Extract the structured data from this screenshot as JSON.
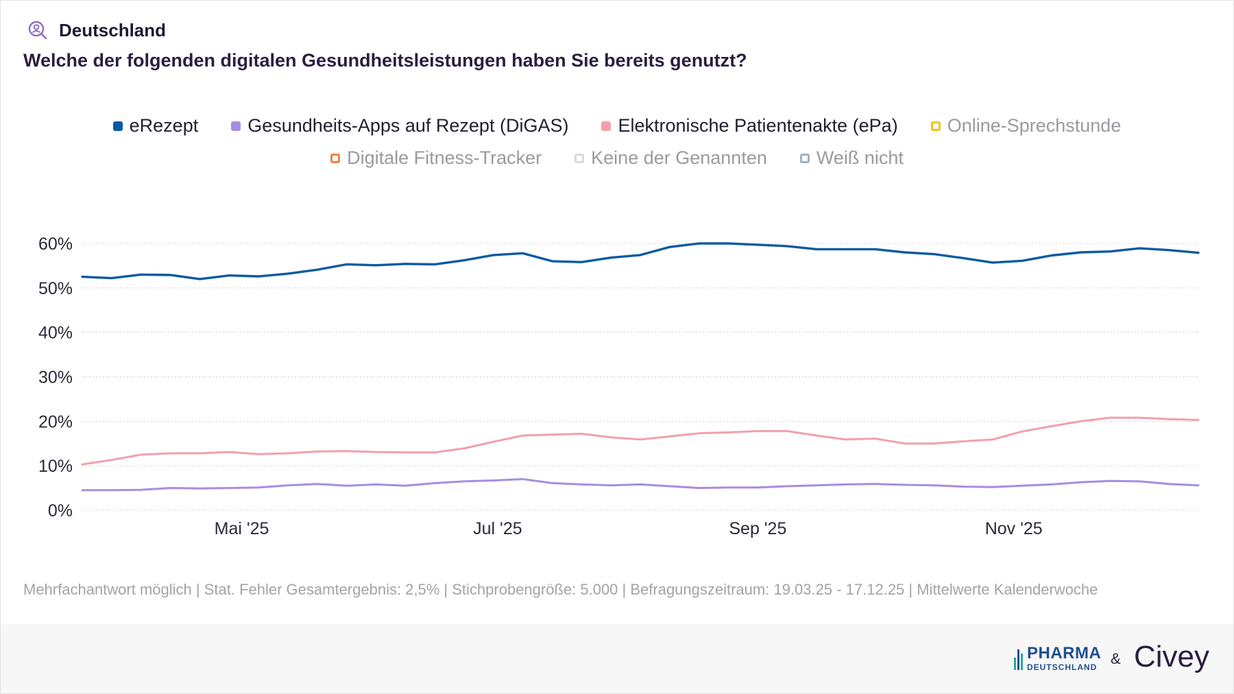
{
  "header": {
    "region_label": "Deutschland",
    "question": "Welche der folgenden digitalen Gesundheitsleistungen haben Sie bereits genutzt?",
    "icon": "person-search-icon"
  },
  "legend": {
    "items": [
      {
        "label": "eRezept",
        "color": "#0b5aa3",
        "active": true
      },
      {
        "label": "Gesundheits-Apps auf Rezept (DiGAS)",
        "color": "#a58ee2",
        "active": true
      },
      {
        "label": "Elektronische Patientenakte (ePa)",
        "color": "#f2a0a9",
        "active": true
      },
      {
        "label": "Online-Sprechstunde",
        "color": "#f2c40f",
        "active": false
      },
      {
        "label": "Digitale Fitness-Tracker",
        "color": "#f08040",
        "active": false
      },
      {
        "label": "Keine der Genannten",
        "color": "#d5dbe1",
        "active": false
      },
      {
        "label": "Weiß nicht",
        "color": "#9fb1c2",
        "active": false
      }
    ]
  },
  "chart_data": {
    "type": "line",
    "x": [
      "2025-03-24",
      "2025-03-31",
      "2025-04-07",
      "2025-04-14",
      "2025-04-21",
      "2025-04-28",
      "2025-05-05",
      "2025-05-12",
      "2025-05-19",
      "2025-05-26",
      "2025-06-02",
      "2025-06-09",
      "2025-06-16",
      "2025-06-23",
      "2025-06-30",
      "2025-07-07",
      "2025-07-14",
      "2025-07-21",
      "2025-07-28",
      "2025-08-04",
      "2025-08-11",
      "2025-08-18",
      "2025-08-25",
      "2025-09-01",
      "2025-09-08",
      "2025-09-15",
      "2025-09-22",
      "2025-09-29",
      "2025-10-06",
      "2025-10-13",
      "2025-10-20",
      "2025-10-27",
      "2025-11-03",
      "2025-11-10",
      "2025-11-17",
      "2025-11-24",
      "2025-12-01",
      "2025-12-08"
    ],
    "series": [
      {
        "name": "eRezept",
        "color": "#0b5aa3",
        "values": [
          52.5,
          52.2,
          53.0,
          52.9,
          52.0,
          52.8,
          52.6,
          53.2,
          54.1,
          55.3,
          55.1,
          55.4,
          55.3,
          56.2,
          57.4,
          57.8,
          56.0,
          55.8,
          56.8,
          57.4,
          59.2,
          60.0,
          60.0,
          59.7,
          59.4,
          58.7,
          58.7,
          58.7,
          58.0,
          57.6,
          56.7,
          55.7,
          56.1,
          57.3,
          58.0,
          58.2,
          58.9,
          58.5
        ],
        "end_value": 57.9
      },
      {
        "name": "Gesundheits-Apps auf Rezept (DiGAS)",
        "color": "#a58ee2",
        "values": [
          4.5,
          4.5,
          4.6,
          5.0,
          4.9,
          5.0,
          5.1,
          5.6,
          5.9,
          5.5,
          5.8,
          5.5,
          6.1,
          6.5,
          6.7,
          7.0,
          6.1,
          5.8,
          5.6,
          5.8,
          5.4,
          5.0,
          5.1,
          5.1,
          5.4,
          5.6,
          5.8,
          5.9,
          5.7,
          5.6,
          5.3,
          5.2,
          5.5,
          5.8,
          6.3,
          6.6,
          6.5,
          5.9
        ],
        "end_value": 5.6
      },
      {
        "name": "Elektronische Patientenakte (ePa)",
        "color": "#f2a0a9",
        "values": [
          10.3,
          11.3,
          12.5,
          12.8,
          12.8,
          13.1,
          12.6,
          12.8,
          13.2,
          13.3,
          13.1,
          13.0,
          13.0,
          13.9,
          15.4,
          16.8,
          17.0,
          17.2,
          16.4,
          15.9,
          16.6,
          17.3,
          17.5,
          17.8,
          17.8,
          16.8,
          15.9,
          16.1,
          15.0,
          15.0,
          15.5,
          15.9,
          17.7,
          18.9,
          20.0,
          20.8,
          20.8,
          20.5
        ],
        "end_value": 20.3
      }
    ],
    "x_ticks": [
      "Mai '25",
      "Jul '25",
      "Sep '25",
      "Nov '25"
    ],
    "x_tick_dates": [
      "2025-05-01",
      "2025-07-01",
      "2025-09-01",
      "2025-11-01"
    ],
    "y_ticks": [
      "0%",
      "10%",
      "20%",
      "30%",
      "40%",
      "50%",
      "60%"
    ],
    "y_tick_values": [
      0,
      10,
      20,
      30,
      40,
      50,
      60
    ],
    "ylim": [
      0,
      60
    ],
    "x_range": [
      "2025-03-24",
      "2025-12-15"
    ],
    "grid": "horizontal-dotted",
    "legend_position": "top-center",
    "title": "Welche der folgenden digitalen Gesundheitsleistungen haben Sie bereits genutzt?",
    "xlabel": "",
    "ylabel": ""
  },
  "footnote": "Mehrfachantwort möglich | Stat. Fehler Gesamtergebnis: 2,5% | Stichprobengröße: 5.000 | Befragungszeitraum: 19.03.25 - 17.12.25 | Mittelwerte Kalenderwoche",
  "footer": {
    "logo_pharma_main": "PHARMA",
    "logo_pharma_sub": "DEUTSCHLAND",
    "ampersand": "&",
    "logo_civey": "Civey"
  }
}
